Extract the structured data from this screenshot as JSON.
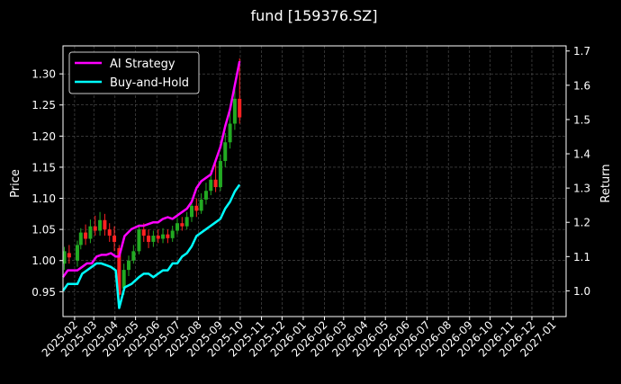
{
  "chart_data": {
    "type": "line",
    "title": "fund [159376.SZ]",
    "ylabel": "Price",
    "y2label": "Return",
    "ylim": [
      0.91,
      1.345
    ],
    "y2lim": [
      0.925,
      1.715
    ],
    "yticks": [
      0.95,
      1.0,
      1.05,
      1.1,
      1.15,
      1.2,
      1.25,
      1.3
    ],
    "ytick_labels": [
      "0.95",
      "1.00",
      "1.05",
      "1.10",
      "1.15",
      "1.20",
      "1.25",
      "1.30"
    ],
    "y2ticks": [
      1.0,
      1.1,
      1.2,
      1.3,
      1.4,
      1.5,
      1.6,
      1.7
    ],
    "y2tick_labels": [
      "1.0",
      "1.1",
      "1.2",
      "1.3",
      "1.4",
      "1.5",
      "1.6",
      "1.7"
    ],
    "xlim": [
      "2025-01-15",
      "2027-01-20"
    ],
    "xticks": [
      "2025-02-01",
      "2025-03-01",
      "2025-04-01",
      "2025-05-01",
      "2025-06-01",
      "2025-07-01",
      "2025-08-01",
      "2025-09-01",
      "2025-10-01",
      "2025-11-01",
      "2025-12-01",
      "2026-01-01",
      "2026-02-01",
      "2026-03-01",
      "2026-04-01",
      "2026-05-01",
      "2026-06-01",
      "2026-07-01",
      "2026-08-01",
      "2026-09-01",
      "2026-10-01",
      "2026-11-01",
      "2026-12-01",
      "2027-01-01"
    ],
    "xtick_labels": [
      "2025-02",
      "2025-03",
      "2025-04",
      "2025-05",
      "2025-06",
      "2025-07",
      "2025-08",
      "2025-09",
      "2025-10",
      "2025-11",
      "2025-12",
      "2026-01",
      "2026-02",
      "2026-03",
      "2026-04",
      "2026-05",
      "2026-06",
      "2026-07",
      "2026-08",
      "2026-09",
      "2026-10",
      "2026-11",
      "2026-12",
      "2027-01"
    ],
    "grid": true,
    "legend_position": "top-left",
    "colors": {
      "up": "#22aa22",
      "down": "#ff2222",
      "strategy": "#ff00ff",
      "buyhold": "#00ffff"
    },
    "series": [
      {
        "name": "AI Strategy",
        "axis": "right",
        "x": [
          "2025-01-15",
          "2025-01-22",
          "2025-02-05",
          "2025-02-12",
          "2025-02-19",
          "2025-02-26",
          "2025-03-05",
          "2025-03-12",
          "2025-03-19",
          "2025-03-26",
          "2025-04-02",
          "2025-04-07",
          "2025-04-15",
          "2025-04-25",
          "2025-05-06",
          "2025-05-13",
          "2025-05-20",
          "2025-05-27",
          "2025-06-03",
          "2025-06-10",
          "2025-06-17",
          "2025-06-24",
          "2025-07-01",
          "2025-07-08",
          "2025-07-15",
          "2025-07-22",
          "2025-07-29",
          "2025-08-05",
          "2025-08-12",
          "2025-08-19",
          "2025-08-26",
          "2025-09-02",
          "2025-09-09",
          "2025-09-16",
          "2025-09-23",
          "2025-09-30"
        ],
        "values": [
          1.04,
          1.06,
          1.06,
          1.07,
          1.08,
          1.08,
          1.1,
          1.105,
          1.105,
          1.11,
          1.1,
          1.1,
          1.16,
          1.18,
          1.19,
          1.19,
          1.195,
          1.2,
          1.2,
          1.21,
          1.215,
          1.21,
          1.22,
          1.23,
          1.24,
          1.26,
          1.3,
          1.32,
          1.33,
          1.34,
          1.38,
          1.42,
          1.48,
          1.53,
          1.6,
          1.67
        ]
      },
      {
        "name": "Buy-and-Hold",
        "axis": "right",
        "x": [
          "2025-01-15",
          "2025-01-22",
          "2025-02-05",
          "2025-02-12",
          "2025-02-19",
          "2025-02-26",
          "2025-03-05",
          "2025-03-12",
          "2025-03-19",
          "2025-03-26",
          "2025-04-02",
          "2025-04-07",
          "2025-04-15",
          "2025-04-25",
          "2025-05-06",
          "2025-05-13",
          "2025-05-20",
          "2025-05-27",
          "2025-06-03",
          "2025-06-10",
          "2025-06-17",
          "2025-06-24",
          "2025-07-01",
          "2025-07-08",
          "2025-07-15",
          "2025-07-22",
          "2025-07-29",
          "2025-08-05",
          "2025-08-12",
          "2025-08-19",
          "2025-08-26",
          "2025-09-02",
          "2025-09-09",
          "2025-09-16",
          "2025-09-23",
          "2025-09-30"
        ],
        "values": [
          1.0,
          1.02,
          1.02,
          1.05,
          1.06,
          1.07,
          1.08,
          1.08,
          1.075,
          1.07,
          1.06,
          0.95,
          1.01,
          1.02,
          1.04,
          1.05,
          1.05,
          1.04,
          1.05,
          1.06,
          1.06,
          1.08,
          1.08,
          1.1,
          1.11,
          1.13,
          1.16,
          1.17,
          1.18,
          1.19,
          1.2,
          1.21,
          1.24,
          1.26,
          1.29,
          1.31
        ]
      }
    ],
    "candles": [
      {
        "d": "2025-01-17",
        "o": 0.995,
        "c": 1.015,
        "h": 1.022,
        "l": 0.985
      },
      {
        "d": "2025-01-24",
        "o": 1.012,
        "c": 1.005,
        "h": 1.025,
        "l": 0.995
      },
      {
        "d": "2025-02-05",
        "o": 1.0,
        "c": 1.025,
        "h": 1.032,
        "l": 0.99
      },
      {
        "d": "2025-02-10",
        "o": 1.025,
        "c": 1.045,
        "h": 1.052,
        "l": 1.018
      },
      {
        "d": "2025-02-17",
        "o": 1.045,
        "c": 1.035,
        "h": 1.058,
        "l": 1.025
      },
      {
        "d": "2025-02-24",
        "o": 1.035,
        "c": 1.055,
        "h": 1.066,
        "l": 1.028
      },
      {
        "d": "2025-03-03",
        "o": 1.055,
        "c": 1.048,
        "h": 1.072,
        "l": 1.04
      },
      {
        "d": "2025-03-10",
        "o": 1.048,
        "c": 1.065,
        "h": 1.078,
        "l": 1.04
      },
      {
        "d": "2025-03-17",
        "o": 1.065,
        "c": 1.05,
        "h": 1.075,
        "l": 1.04
      },
      {
        "d": "2025-03-24",
        "o": 1.05,
        "c": 1.04,
        "h": 1.06,
        "l": 1.03
      },
      {
        "d": "2025-03-31",
        "o": 1.04,
        "c": 1.03,
        "h": 1.055,
        "l": 1.015
      },
      {
        "d": "2025-04-07",
        "o": 1.02,
        "c": 0.945,
        "h": 1.025,
        "l": 0.925
      },
      {
        "d": "2025-04-14",
        "o": 0.955,
        "c": 0.985,
        "h": 0.995,
        "l": 0.945
      },
      {
        "d": "2025-04-21",
        "o": 0.985,
        "c": 1.0,
        "h": 1.008,
        "l": 0.975
      },
      {
        "d": "2025-04-28",
        "o": 1.0,
        "c": 1.015,
        "h": 1.025,
        "l": 0.995
      },
      {
        "d": "2025-05-06",
        "o": 1.015,
        "c": 1.05,
        "h": 1.058,
        "l": 1.01
      },
      {
        "d": "2025-05-13",
        "o": 1.05,
        "c": 1.04,
        "h": 1.06,
        "l": 1.03
      },
      {
        "d": "2025-05-20",
        "o": 1.04,
        "c": 1.03,
        "h": 1.05,
        "l": 1.02
      },
      {
        "d": "2025-05-27",
        "o": 1.03,
        "c": 1.04,
        "h": 1.048,
        "l": 1.022
      },
      {
        "d": "2025-06-03",
        "o": 1.04,
        "c": 1.035,
        "h": 1.05,
        "l": 1.028
      },
      {
        "d": "2025-06-10",
        "o": 1.035,
        "c": 1.042,
        "h": 1.052,
        "l": 1.028
      },
      {
        "d": "2025-06-17",
        "o": 1.042,
        "c": 1.036,
        "h": 1.05,
        "l": 1.028
      },
      {
        "d": "2025-06-24",
        "o": 1.036,
        "c": 1.048,
        "h": 1.056,
        "l": 1.03
      },
      {
        "d": "2025-07-01",
        "o": 1.048,
        "c": 1.06,
        "h": 1.068,
        "l": 1.042
      },
      {
        "d": "2025-07-08",
        "o": 1.06,
        "c": 1.055,
        "h": 1.07,
        "l": 1.048
      },
      {
        "d": "2025-07-15",
        "o": 1.055,
        "c": 1.07,
        "h": 1.078,
        "l": 1.05
      },
      {
        "d": "2025-07-22",
        "o": 1.07,
        "c": 1.088,
        "h": 1.095,
        "l": 1.062
      },
      {
        "d": "2025-07-29",
        "o": 1.088,
        "c": 1.08,
        "h": 1.1,
        "l": 1.07
      },
      {
        "d": "2025-08-05",
        "o": 1.08,
        "c": 1.098,
        "h": 1.108,
        "l": 1.075
      },
      {
        "d": "2025-08-12",
        "o": 1.098,
        "c": 1.112,
        "h": 1.125,
        "l": 1.09
      },
      {
        "d": "2025-08-19",
        "o": 1.112,
        "c": 1.13,
        "h": 1.145,
        "l": 1.105
      },
      {
        "d": "2025-08-26",
        "o": 1.13,
        "c": 1.118,
        "h": 1.155,
        "l": 1.11
      },
      {
        "d": "2025-09-02",
        "o": 1.118,
        "c": 1.16,
        "h": 1.17,
        "l": 1.112
      },
      {
        "d": "2025-09-09",
        "o": 1.16,
        "c": 1.19,
        "h": 1.205,
        "l": 1.15
      },
      {
        "d": "2025-09-16",
        "o": 1.19,
        "c": 1.22,
        "h": 1.24,
        "l": 1.18
      },
      {
        "d": "2025-09-23",
        "o": 1.22,
        "c": 1.26,
        "h": 1.285,
        "l": 1.21
      },
      {
        "d": "2025-09-30",
        "o": 1.26,
        "c": 1.23,
        "h": 1.325,
        "l": 1.22
      }
    ]
  }
}
